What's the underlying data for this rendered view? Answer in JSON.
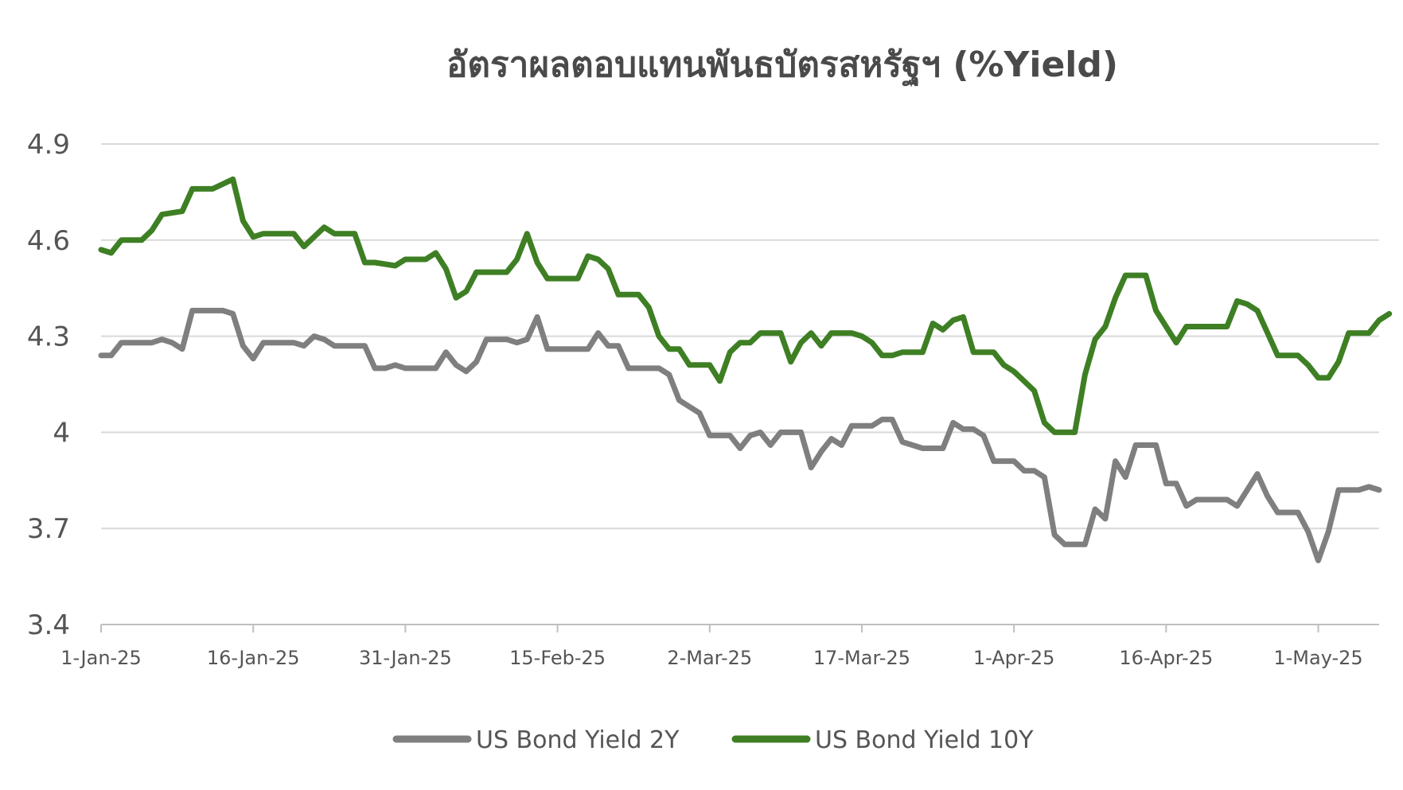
{
  "chart_data": {
    "type": "line",
    "title": "อัตราผลตอบแทนพันธบัตรสหรัฐฯ (%Yield)",
    "xlabel": "",
    "ylabel": "",
    "ylim": [
      3.4,
      4.9
    ],
    "y_ticks": [
      "4.9",
      "4.6",
      "4.3",
      "4",
      "3.7",
      "3.4"
    ],
    "y_tick_values": [
      4.9,
      4.6,
      4.3,
      4.0,
      3.7,
      3.4
    ],
    "x_ticks": [
      "1-Jan-25",
      "16-Jan-25",
      "31-Jan-25",
      "15-Feb-25",
      "2-Mar-25",
      "17-Mar-25",
      "1-Apr-25",
      "16-Apr-25",
      "1-May-25"
    ],
    "x_tick_dates": [
      "2025-01-01",
      "2025-01-16",
      "2025-01-31",
      "2025-02-15",
      "2025-03-02",
      "2025-03-17",
      "2025-04-01",
      "2025-04-16",
      "2025-05-01"
    ],
    "x_range": [
      "2025-01-01",
      "2025-05-07"
    ],
    "grid": true,
    "legend_position": "bottom",
    "series": [
      {
        "name": "US Bond Yield 2Y",
        "color": "#7f7f7f",
        "points": [
          [
            "2025-01-01",
            4.24
          ],
          [
            "2025-01-02",
            4.24
          ],
          [
            "2025-01-03",
            4.28
          ],
          [
            "2025-01-06",
            4.28
          ],
          [
            "2025-01-07",
            4.29
          ],
          [
            "2025-01-08",
            4.28
          ],
          [
            "2025-01-09",
            4.26
          ],
          [
            "2025-01-10",
            4.38
          ],
          [
            "2025-01-13",
            4.38
          ],
          [
            "2025-01-14",
            4.37
          ],
          [
            "2025-01-15",
            4.27
          ],
          [
            "2025-01-16",
            4.23
          ],
          [
            "2025-01-17",
            4.28
          ],
          [
            "2025-01-20",
            4.28
          ],
          [
            "2025-01-21",
            4.27
          ],
          [
            "2025-01-22",
            4.3
          ],
          [
            "2025-01-23",
            4.29
          ],
          [
            "2025-01-24",
            4.27
          ],
          [
            "2025-01-27",
            4.27
          ],
          [
            "2025-01-28",
            4.2
          ],
          [
            "2025-01-29",
            4.2
          ],
          [
            "2025-01-30",
            4.21
          ],
          [
            "2025-01-31",
            4.2
          ],
          [
            "2025-02-03",
            4.2
          ],
          [
            "2025-02-04",
            4.25
          ],
          [
            "2025-02-05",
            4.21
          ],
          [
            "2025-02-06",
            4.19
          ],
          [
            "2025-02-07",
            4.22
          ],
          [
            "2025-02-08",
            4.29
          ],
          [
            "2025-02-10",
            4.29
          ],
          [
            "2025-02-11",
            4.28
          ],
          [
            "2025-02-12",
            4.29
          ],
          [
            "2025-02-13",
            4.36
          ],
          [
            "2025-02-14",
            4.26
          ],
          [
            "2025-02-17",
            4.26
          ],
          [
            "2025-02-18",
            4.26
          ],
          [
            "2025-02-19",
            4.31
          ],
          [
            "2025-02-20",
            4.27
          ],
          [
            "2025-02-21",
            4.27
          ],
          [
            "2025-02-22",
            4.2
          ],
          [
            "2025-02-24",
            4.2
          ],
          [
            "2025-02-25",
            4.2
          ],
          [
            "2025-02-26",
            4.18
          ],
          [
            "2025-02-27",
            4.1
          ],
          [
            "2025-02-28",
            4.08
          ],
          [
            "2025-03-01",
            4.06
          ],
          [
            "2025-03-02",
            3.99
          ],
          [
            "2025-03-04",
            3.99
          ],
          [
            "2025-03-05",
            3.95
          ],
          [
            "2025-03-06",
            3.99
          ],
          [
            "2025-03-07",
            4.0
          ],
          [
            "2025-03-08",
            3.96
          ],
          [
            "2025-03-09",
            4.0
          ],
          [
            "2025-03-11",
            4.0
          ],
          [
            "2025-03-12",
            3.89
          ],
          [
            "2025-03-13",
            3.94
          ],
          [
            "2025-03-14",
            3.98
          ],
          [
            "2025-03-15",
            3.96
          ],
          [
            "2025-03-16",
            4.02
          ],
          [
            "2025-03-18",
            4.02
          ],
          [
            "2025-03-19",
            4.04
          ],
          [
            "2025-03-20",
            4.04
          ],
          [
            "2025-03-21",
            3.97
          ],
          [
            "2025-03-22",
            3.96
          ],
          [
            "2025-03-23",
            3.95
          ],
          [
            "2025-03-25",
            3.95
          ],
          [
            "2025-03-26",
            4.03
          ],
          [
            "2025-03-27",
            4.01
          ],
          [
            "2025-03-28",
            4.01
          ],
          [
            "2025-03-29",
            3.99
          ],
          [
            "2025-03-30",
            3.91
          ],
          [
            "2025-04-01",
            3.91
          ],
          [
            "2025-04-02",
            3.88
          ],
          [
            "2025-04-03",
            3.88
          ],
          [
            "2025-04-04",
            3.86
          ],
          [
            "2025-04-05",
            3.68
          ],
          [
            "2025-04-06",
            3.65
          ],
          [
            "2025-04-08",
            3.65
          ],
          [
            "2025-04-09",
            3.76
          ],
          [
            "2025-04-10",
            3.73
          ],
          [
            "2025-04-11",
            3.91
          ],
          [
            "2025-04-12",
            3.86
          ],
          [
            "2025-04-13",
            3.96
          ],
          [
            "2025-04-15",
            3.96
          ],
          [
            "2025-04-16",
            3.84
          ],
          [
            "2025-04-17",
            3.84
          ],
          [
            "2025-04-18",
            3.77
          ],
          [
            "2025-04-19",
            3.79
          ],
          [
            "2025-04-22",
            3.79
          ],
          [
            "2025-04-23",
            3.77
          ],
          [
            "2025-04-25",
            3.87
          ],
          [
            "2025-04-26",
            3.8
          ],
          [
            "2025-04-27",
            3.75
          ],
          [
            "2025-04-29",
            3.75
          ],
          [
            "2025-04-30",
            3.69
          ],
          [
            "2025-05-01",
            3.6
          ],
          [
            "2025-05-02",
            3.69
          ],
          [
            "2025-05-03",
            3.82
          ],
          [
            "2025-05-05",
            3.82
          ],
          [
            "2025-05-06",
            3.83
          ],
          [
            "2025-05-07",
            3.82
          ]
        ]
      },
      {
        "name": "US Bond Yield 10Y",
        "color": "#3e7f24",
        "points": [
          [
            "2025-01-01",
            4.57
          ],
          [
            "2025-01-02",
            4.56
          ],
          [
            "2025-01-03",
            4.6
          ],
          [
            "2025-01-05",
            4.6
          ],
          [
            "2025-01-06",
            4.63
          ],
          [
            "2025-01-07",
            4.68
          ],
          [
            "2025-01-09",
            4.69
          ],
          [
            "2025-01-10",
            4.76
          ],
          [
            "2025-01-12",
            4.76
          ],
          [
            "2025-01-14",
            4.79
          ],
          [
            "2025-01-15",
            4.66
          ],
          [
            "2025-01-16",
            4.61
          ],
          [
            "2025-01-17",
            4.62
          ],
          [
            "2025-01-20",
            4.62
          ],
          [
            "2025-01-21",
            4.58
          ],
          [
            "2025-01-23",
            4.64
          ],
          [
            "2025-01-24",
            4.62
          ],
          [
            "2025-01-26",
            4.62
          ],
          [
            "2025-01-27",
            4.53
          ],
          [
            "2025-01-28",
            4.53
          ],
          [
            "2025-01-30",
            4.52
          ],
          [
            "2025-01-31",
            4.54
          ],
          [
            "2025-02-02",
            4.54
          ],
          [
            "2025-02-03",
            4.56
          ],
          [
            "2025-02-04",
            4.51
          ],
          [
            "2025-02-05",
            4.42
          ],
          [
            "2025-02-06",
            4.44
          ],
          [
            "2025-02-07",
            4.5
          ],
          [
            "2025-02-08",
            4.5
          ],
          [
            "2025-02-10",
            4.5
          ],
          [
            "2025-02-11",
            4.54
          ],
          [
            "2025-02-12",
            4.62
          ],
          [
            "2025-02-13",
            4.53
          ],
          [
            "2025-02-14",
            4.48
          ],
          [
            "2025-02-17",
            4.48
          ],
          [
            "2025-02-18",
            4.55
          ],
          [
            "2025-02-19",
            4.54
          ],
          [
            "2025-02-20",
            4.51
          ],
          [
            "2025-02-21",
            4.43
          ],
          [
            "2025-02-23",
            4.43
          ],
          [
            "2025-02-24",
            4.39
          ],
          [
            "2025-02-25",
            4.3
          ],
          [
            "2025-02-26",
            4.26
          ],
          [
            "2025-02-27",
            4.26
          ],
          [
            "2025-02-28",
            4.21
          ],
          [
            "2025-03-02",
            4.21
          ],
          [
            "2025-03-03",
            4.16
          ],
          [
            "2025-03-04",
            4.25
          ],
          [
            "2025-03-05",
            4.28
          ],
          [
            "2025-03-06",
            4.28
          ],
          [
            "2025-03-07",
            4.31
          ],
          [
            "2025-03-09",
            4.31
          ],
          [
            "2025-03-10",
            4.22
          ],
          [
            "2025-03-11",
            4.28
          ],
          [
            "2025-03-12",
            4.31
          ],
          [
            "2025-03-13",
            4.27
          ],
          [
            "2025-03-14",
            4.31
          ],
          [
            "2025-03-16",
            4.31
          ],
          [
            "2025-03-17",
            4.3
          ],
          [
            "2025-03-18",
            4.28
          ],
          [
            "2025-03-19",
            4.24
          ],
          [
            "2025-03-20",
            4.24
          ],
          [
            "2025-03-21",
            4.25
          ],
          [
            "2025-03-23",
            4.25
          ],
          [
            "2025-03-24",
            4.34
          ],
          [
            "2025-03-25",
            4.32
          ],
          [
            "2025-03-26",
            4.35
          ],
          [
            "2025-03-27",
            4.36
          ],
          [
            "2025-03-28",
            4.25
          ],
          [
            "2025-03-30",
            4.25
          ],
          [
            "2025-03-31",
            4.21
          ],
          [
            "2025-04-01",
            4.19
          ],
          [
            "2025-04-02",
            4.16
          ],
          [
            "2025-04-03",
            4.13
          ],
          [
            "2025-04-04",
            4.03
          ],
          [
            "2025-04-05",
            4.0
          ],
          [
            "2025-04-07",
            4.0
          ],
          [
            "2025-04-08",
            4.18
          ],
          [
            "2025-04-09",
            4.29
          ],
          [
            "2025-04-10",
            4.33
          ],
          [
            "2025-04-11",
            4.42
          ],
          [
            "2025-04-12",
            4.49
          ],
          [
            "2025-04-14",
            4.49
          ],
          [
            "2025-04-15",
            4.38
          ],
          [
            "2025-04-16",
            4.33
          ],
          [
            "2025-04-17",
            4.28
          ],
          [
            "2025-04-18",
            4.33
          ],
          [
            "2025-04-22",
            4.33
          ],
          [
            "2025-04-23",
            4.41
          ],
          [
            "2025-04-24",
            4.4
          ],
          [
            "2025-04-25",
            4.38
          ],
          [
            "2025-04-26",
            4.31
          ],
          [
            "2025-04-27",
            4.24
          ],
          [
            "2025-04-29",
            4.24
          ],
          [
            "2025-04-30",
            4.21
          ],
          [
            "2025-05-01",
            4.17
          ],
          [
            "2025-05-02",
            4.17
          ],
          [
            "2025-05-03",
            4.22
          ],
          [
            "2025-05-04",
            4.31
          ],
          [
            "2025-05-06",
            4.31
          ],
          [
            "2025-05-07",
            4.35
          ],
          [
            "2025-05-08",
            4.37
          ]
        ]
      }
    ]
  }
}
